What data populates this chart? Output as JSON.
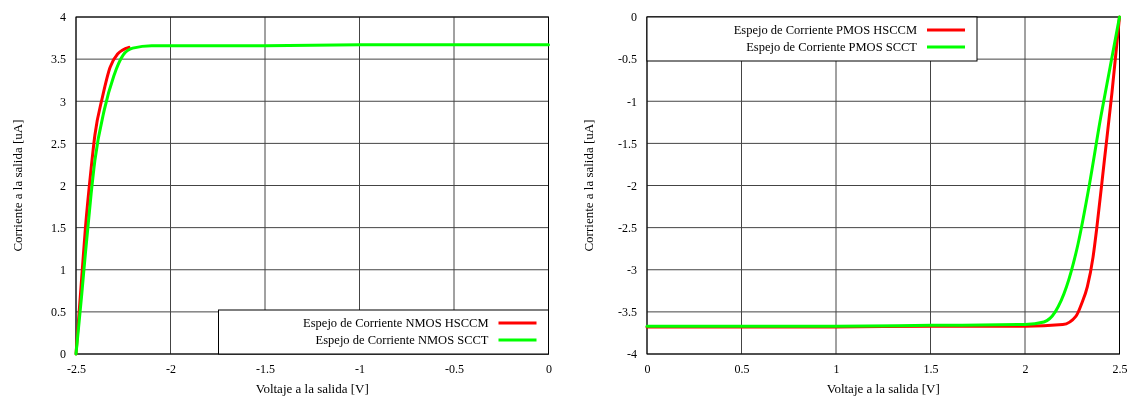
{
  "chart_data": [
    {
      "type": "line",
      "xlabel": "Voltaje a la salida [V]",
      "ylabel": "Corriente a la salida [uA]",
      "xlim": [
        -2.5,
        0
      ],
      "xticks": [
        -2.5,
        -2,
        -1.5,
        -1,
        -0.5,
        0
      ],
      "ylim": [
        0,
        4
      ],
      "yticks": [
        0,
        0.5,
        1,
        1.5,
        2,
        2.5,
        3,
        3.5,
        4
      ],
      "grid": true,
      "legend": "bottom right",
      "series": [
        {
          "name": "Espejo de Corriente NMOS HSCCM",
          "color": "#ff0000",
          "x": [
            -2.5,
            -2.47,
            -2.45,
            -2.42,
            -2.4,
            -2.36,
            -2.32,
            -2.28,
            -2.22
          ],
          "values": [
            0,
            0.9,
            1.5,
            2.2,
            2.6,
            3.05,
            3.4,
            3.56,
            3.64
          ]
        },
        {
          "name": "Espejo de Corriente NMOS SCCT",
          "color": "#00ff00",
          "x": [
            -2.5,
            -2.47,
            -2.45,
            -2.42,
            -2.4,
            -2.35,
            -2.3,
            -2.25,
            -2.2,
            -2.1,
            -1.5,
            -1,
            -0.5,
            0
          ],
          "values": [
            0,
            0.7,
            1.2,
            1.9,
            2.3,
            2.9,
            3.3,
            3.55,
            3.63,
            3.66,
            3.66,
            3.67,
            3.67,
            3.67
          ]
        }
      ]
    },
    {
      "type": "line",
      "xlabel": "Voltaje a la salida [V]",
      "ylabel": "Corriente a la salida [uA]",
      "xlim": [
        0,
        2.5
      ],
      "xticks": [
        0,
        0.5,
        1,
        1.5,
        2,
        2.5
      ],
      "ylim": [
        -4,
        0
      ],
      "yticks": [
        -4,
        -3.5,
        -3,
        -2.5,
        -2,
        -1.5,
        -1,
        -0.5,
        0
      ],
      "grid": true,
      "legend": "top left",
      "series": [
        {
          "name": "Espejo de Corriente PMOS HSCCM",
          "color": "#ff0000",
          "x": [
            0,
            0.5,
            1,
            1.5,
            2,
            2.2,
            2.27,
            2.3,
            2.33,
            2.36,
            2.38,
            2.42,
            2.46,
            2.5
          ],
          "values": [
            -3.68,
            -3.68,
            -3.68,
            -3.67,
            -3.67,
            -3.65,
            -3.55,
            -3.4,
            -3.2,
            -2.85,
            -2.5,
            -1.7,
            -0.9,
            0
          ]
        },
        {
          "name": "Espejo de Corriente PMOS SCCT",
          "color": "#00ff00",
          "x": [
            0,
            0.5,
            1,
            1.5,
            2,
            2.1,
            2.16,
            2.22,
            2.28,
            2.34,
            2.4,
            2.45,
            2.5
          ],
          "values": [
            -3.67,
            -3.67,
            -3.67,
            -3.66,
            -3.65,
            -3.62,
            -3.5,
            -3.2,
            -2.7,
            -2.0,
            -1.2,
            -0.6,
            0
          ]
        }
      ]
    }
  ]
}
